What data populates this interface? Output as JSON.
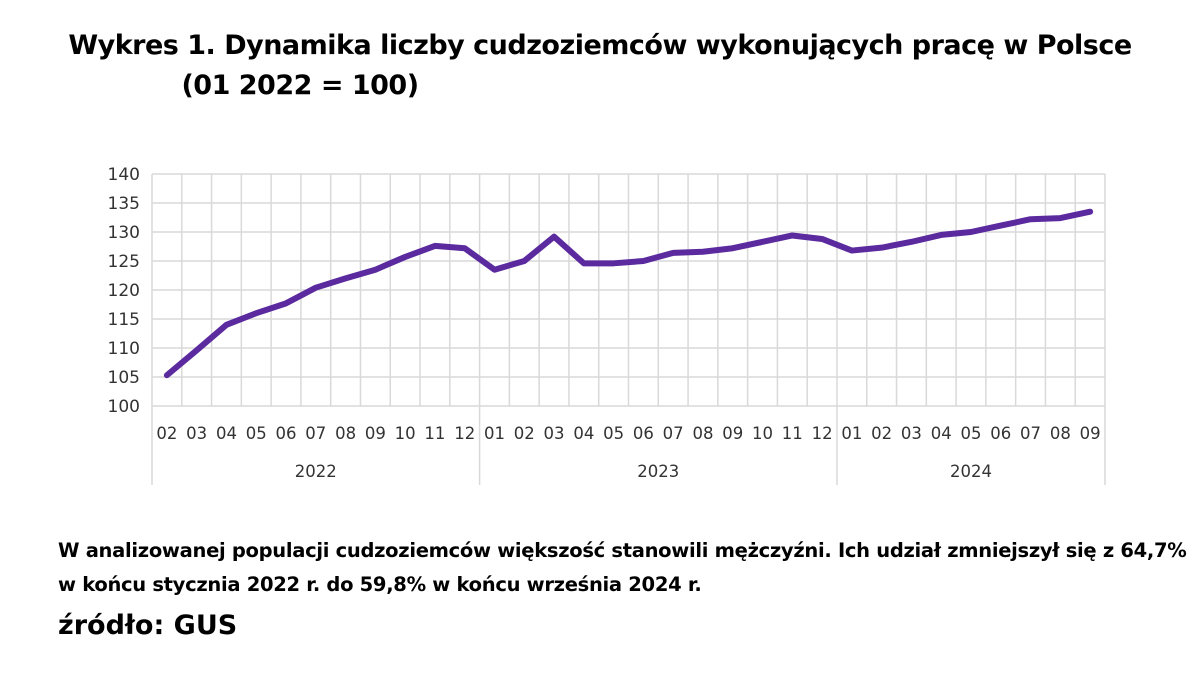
{
  "chart_data": {
    "type": "line",
    "title": "Wykres 1. Dynamika liczby cudzoziemców wykonujących pracę w Polsce",
    "subtitle": "(01 2022 = 100)",
    "categories": [
      "02",
      "03",
      "04",
      "05",
      "06",
      "07",
      "08",
      "09",
      "10",
      "11",
      "12",
      "01",
      "02",
      "03",
      "04",
      "05",
      "06",
      "07",
      "08",
      "09",
      "10",
      "11",
      "12",
      "01",
      "02",
      "03",
      "04",
      "05",
      "06",
      "07",
      "08",
      "09"
    ],
    "groups": [
      {
        "label": "2022",
        "count": 11
      },
      {
        "label": "2023",
        "count": 12
      },
      {
        "label": "2024",
        "count": 9
      }
    ],
    "values": [
      105.3,
      109.6,
      114.0,
      116.0,
      117.7,
      120.4,
      122.0,
      123.5,
      125.7,
      127.6,
      127.2,
      123.5,
      125.0,
      129.2,
      124.6,
      124.6,
      125.0,
      126.4,
      126.6,
      127.2,
      128.3,
      129.4,
      128.8,
      126.8,
      127.3,
      128.3,
      129.5,
      130.0,
      131.1,
      132.2,
      132.4,
      133.5
    ],
    "ylim": [
      100,
      140
    ],
    "yticks": [
      "100",
      "105",
      "110",
      "115",
      "120",
      "125",
      "130",
      "135",
      "140"
    ],
    "grid": true,
    "legend": "none",
    "line_color": "#5b2a9e"
  },
  "note": "W analizowanej populacji cudzoziemców większość stanowili mężczyźni. Ich udział zmniejszył się z 64,7% w końcu stycznia 2022 r. do 59,8% w końcu września 2024 r.",
  "source": "źródło: GUS"
}
